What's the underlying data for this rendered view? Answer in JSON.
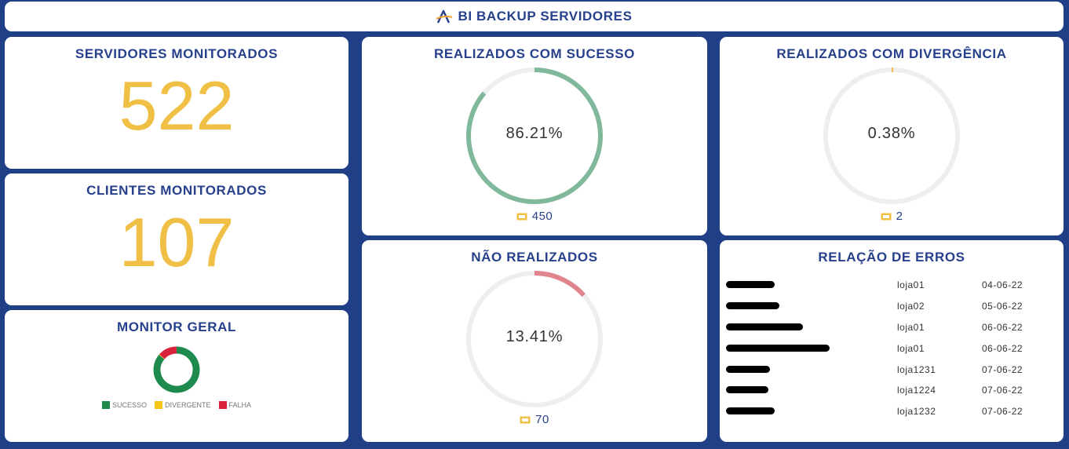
{
  "header": {
    "title": "BI BACKUP SERVIDORES",
    "logo_icon": "a-logo-icon"
  },
  "servers": {
    "title": "SERVIDORES MONITORADOS",
    "value": "522"
  },
  "clients": {
    "title": "CLIENTES MONITORADOS",
    "value": "107"
  },
  "success": {
    "title": "REALIZADOS COM SUCESSO",
    "percent": "86.21%",
    "fraction": 0.8621,
    "count": "450",
    "color": "#7fb89b"
  },
  "divergence": {
    "title": "REALIZADOS COM DIVERGÊNCIA",
    "percent": "0.38%",
    "fraction": 0.0038,
    "count": "2",
    "color": "#f0bf45"
  },
  "not_done": {
    "title": "NÃO REALIZADOS",
    "percent": "13.41%",
    "fraction": 0.1341,
    "count": "70",
    "color": "#e0848e"
  },
  "monitor": {
    "title": "MONITOR GERAL",
    "legend": [
      {
        "label": "SUCESSO",
        "color": "#1e8a4e"
      },
      {
        "label": "DIVERGENTE",
        "color": "#f5c518"
      },
      {
        "label": "FALHA",
        "color": "#d9243c"
      }
    ]
  },
  "chart_data": {
    "type": "pie",
    "categories": [
      "SUCESSO",
      "DIVERGENTE",
      "FALHA"
    ],
    "values": [
      86.21,
      0.38,
      13.41
    ]
  },
  "errors": {
    "title": "RELAÇÃO DE ERROS",
    "rows": [
      {
        "store": "loja01",
        "date": "04-06-22"
      },
      {
        "store": "loja02",
        "date": "05-06-22"
      },
      {
        "store": "loja01",
        "date": "06-06-22"
      },
      {
        "store": "loja01",
        "date": "06-06-22"
      },
      {
        "store": "loja1231",
        "date": "07-06-22"
      },
      {
        "store": "loja1224",
        "date": "07-06-22"
      },
      {
        "store": "loja1232",
        "date": "07-06-22"
      }
    ]
  },
  "ticket_icon": "ticket-icon"
}
